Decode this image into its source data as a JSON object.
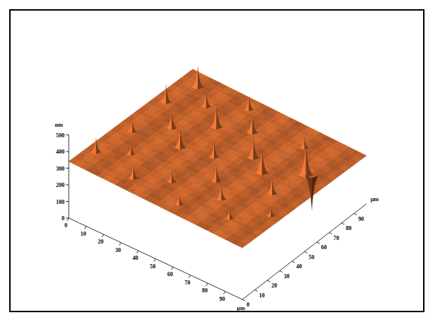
{
  "chart_data": {
    "type": "surface",
    "z_label": "nm",
    "x_label": "µm",
    "y_label": "µm",
    "xlim": [
      0,
      100
    ],
    "ylim": [
      0,
      100
    ],
    "zlim": [
      0,
      500
    ],
    "xticks": [
      0,
      10,
      20,
      30,
      40,
      50,
      60,
      70,
      80,
      90
    ],
    "yticks": [
      0,
      10,
      20,
      30,
      40,
      50,
      60,
      70,
      80,
      90
    ],
    "zticks": [
      0,
      100,
      200,
      300,
      400,
      500
    ],
    "color": "#c8642c",
    "corner_heights": {
      "x0_y0": 340,
      "x100_y0": 310,
      "x0_y100": 320,
      "x100_y100": 290
    },
    "peaks": [
      {
        "x": 5,
        "y": 15,
        "height": 90
      },
      {
        "x": 8,
        "y": 40,
        "height": 70
      },
      {
        "x": 6,
        "y": 70,
        "height": 110
      },
      {
        "x": 10,
        "y": 90,
        "height": 130
      },
      {
        "x": 18,
        "y": 25,
        "height": 60
      },
      {
        "x": 20,
        "y": 55,
        "height": 100
      },
      {
        "x": 22,
        "y": 80,
        "height": 90
      },
      {
        "x": 30,
        "y": 10,
        "height": 80
      },
      {
        "x": 32,
        "y": 45,
        "height": 120
      },
      {
        "x": 35,
        "y": 70,
        "height": 140
      },
      {
        "x": 38,
        "y": 92,
        "height": 80
      },
      {
        "x": 45,
        "y": 20,
        "height": 70
      },
      {
        "x": 48,
        "y": 50,
        "height": 90
      },
      {
        "x": 50,
        "y": 78,
        "height": 110
      },
      {
        "x": 58,
        "y": 8,
        "height": 60
      },
      {
        "x": 60,
        "y": 35,
        "height": 100
      },
      {
        "x": 62,
        "y": 62,
        "height": 130
      },
      {
        "x": 70,
        "y": 25,
        "height": 80
      },
      {
        "x": 72,
        "y": 55,
        "height": 150
      },
      {
        "x": 75,
        "y": 85,
        "height": 70
      },
      {
        "x": 82,
        "y": 15,
        "height": 60
      },
      {
        "x": 85,
        "y": 45,
        "height": 90
      },
      {
        "x": 88,
        "y": 68,
        "height": 190
      },
      {
        "x": 90,
        "y": 70,
        "height": -220
      },
      {
        "x": 95,
        "y": 30,
        "height": 50
      }
    ]
  }
}
